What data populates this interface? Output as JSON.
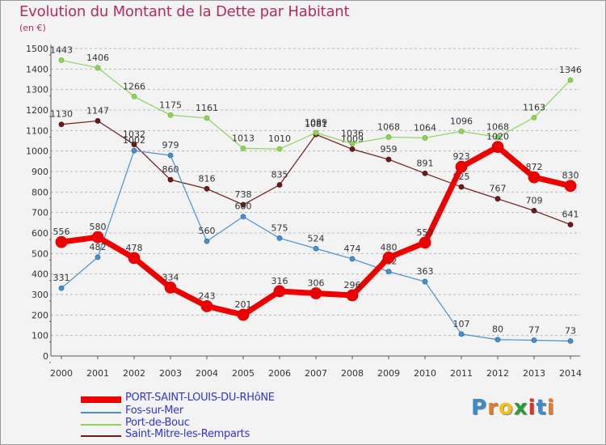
{
  "header": {
    "title": "Evolution du Montant de la Dette par Habitant",
    "unit": "(en €)"
  },
  "logo": {
    "text": "Proxiti",
    "letter_colors": [
      "#3a8ad0",
      "#e8782a",
      "#f2c21a",
      "#2a9a3a",
      "#d8342a",
      "#3a8ad0",
      "#e8782a"
    ]
  },
  "colors": {
    "background": "#f3f3f3",
    "grid": "#b8b8b8",
    "axis": "#555555",
    "title": "#b52a63",
    "legend_text": "#3434d0"
  },
  "chart_data": {
    "type": "line",
    "title": "Evolution du Montant de la Dette par Habitant",
    "subtitle": "(en €)",
    "x": [
      "2000",
      "2001",
      "2002",
      "2003",
      "2004",
      "2005",
      "2006",
      "2007",
      "2008",
      "2009",
      "2010",
      "2011",
      "2012",
      "2013",
      "2014"
    ],
    "ylim": [
      0,
      1500
    ],
    "yticks": [
      0,
      100,
      200,
      300,
      400,
      500,
      600,
      700,
      800,
      900,
      1000,
      1100,
      1200,
      1300,
      1400,
      1500
    ],
    "grid": true,
    "legend_position": "bottom",
    "series": [
      {
        "name": "Saint-Mitre-les-Remparts",
        "color": "#6e1a1a",
        "values": [
          1130,
          1147,
          1032,
          860,
          816,
          738,
          835,
          1081,
          1009,
          959,
          891,
          825,
          767,
          709,
          641
        ]
      },
      {
        "name": "Port-de-Bouc",
        "color": "#8fd35a",
        "values": [
          1443,
          1406,
          1266,
          1175,
          1161,
          1013,
          1010,
          1089,
          1036,
          1068,
          1064,
          1096,
          1068,
          1163,
          1346
        ]
      },
      {
        "name": "Fos-sur-Mer",
        "color": "#4a90cc",
        "values": [
          331,
          482,
          1002,
          979,
          560,
          680,
          575,
          524,
          474,
          412,
          363,
          107,
          80,
          77,
          73
        ]
      },
      {
        "name": "PORT-SAINT-LOUIS-DU-RHôNE",
        "color": "#ee0000",
        "values": [
          556,
          580,
          478,
          334,
          243,
          201,
          316,
          306,
          296,
          480,
          553,
          923,
          1020,
          872,
          830
        ]
      }
    ],
    "legend_order": [
      "PORT-SAINT-LOUIS-DU-RHôNE",
      "Fos-sur-Mer",
      "Port-de-Bouc",
      "Saint-Mitre-les-Remparts"
    ]
  }
}
